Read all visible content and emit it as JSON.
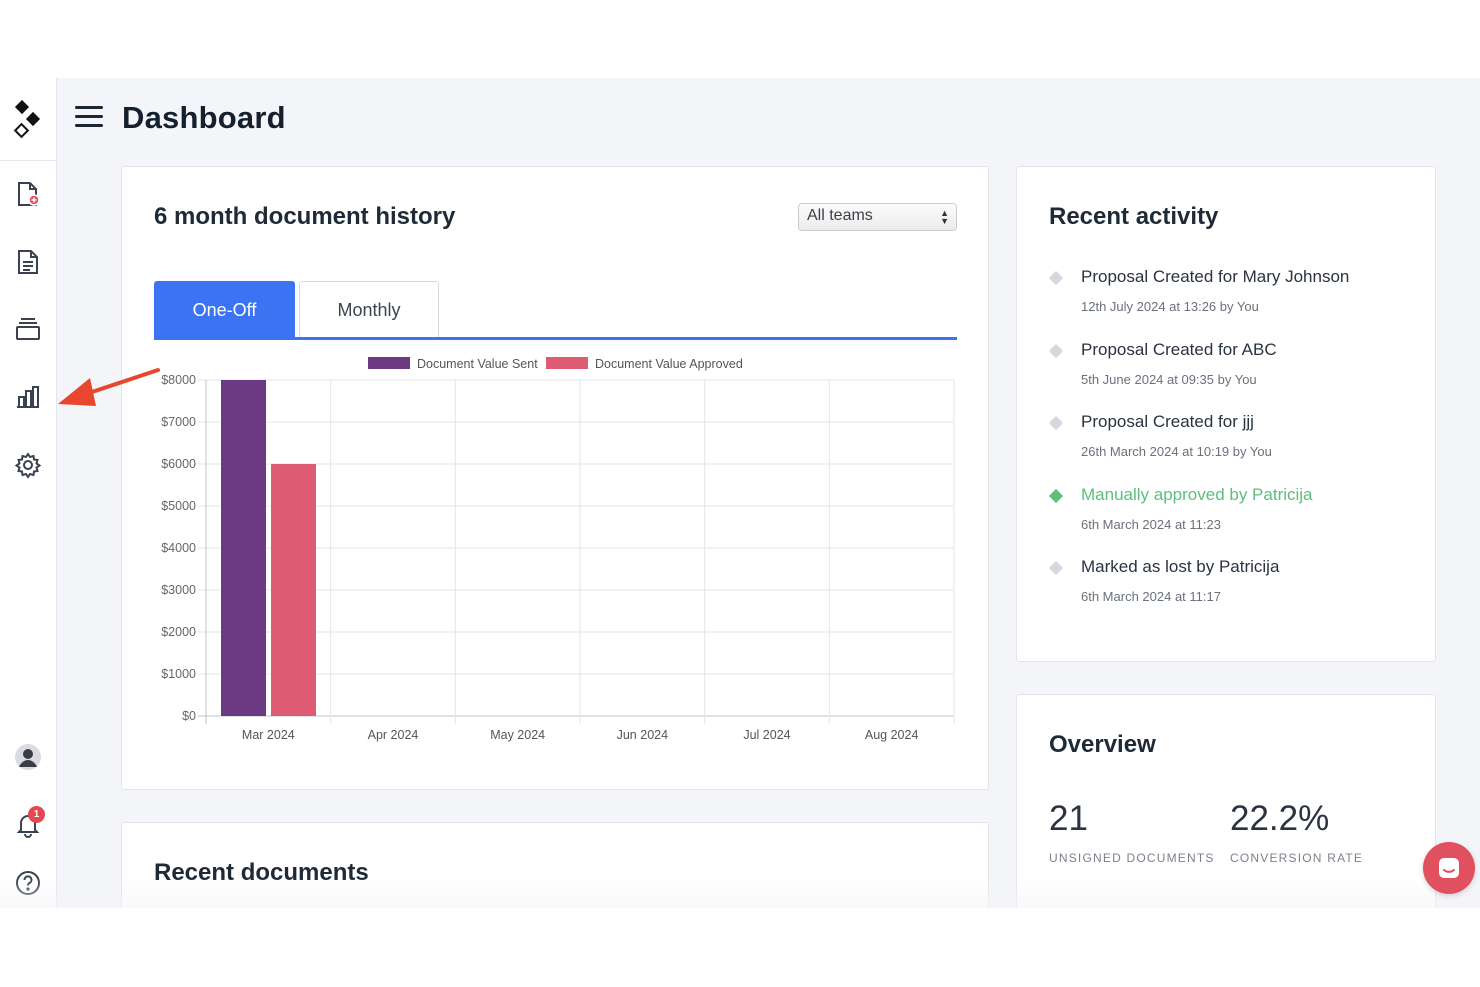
{
  "header": {
    "title": "Dashboard"
  },
  "sidebar": {
    "items": [
      {
        "icon": "new-document-icon"
      },
      {
        "icon": "document-icon"
      },
      {
        "icon": "templates-icon"
      },
      {
        "icon": "reports-bar-chart-icon"
      },
      {
        "icon": "settings-gear-icon"
      }
    ],
    "bottom": [
      {
        "icon": "user-avatar-icon"
      },
      {
        "icon": "bell-icon",
        "badge": "1"
      },
      {
        "icon": "help-icon"
      }
    ]
  },
  "history": {
    "title": "6 month document history",
    "team_select": "All teams",
    "tabs": [
      {
        "label": "One-Off"
      },
      {
        "label": "Monthly"
      }
    ]
  },
  "chart_data": {
    "type": "bar",
    "title": "",
    "categories": [
      "Mar 2024",
      "Apr 2024",
      "May 2024",
      "Jun 2024",
      "Jul 2024",
      "Aug 2024"
    ],
    "series": [
      {
        "name": "Document Value Sent",
        "color": "#6b3a82",
        "values": [
          8000,
          0,
          0,
          0,
          0,
          0
        ]
      },
      {
        "name": "Document Value Approved",
        "color": "#de5c73",
        "values": [
          6000,
          0,
          0,
          0,
          0,
          0
        ]
      }
    ],
    "y_ticks": [
      "$0",
      "$1000",
      "$2000",
      "$3000",
      "$4000",
      "$5000",
      "$6000",
      "$7000",
      "$8000"
    ],
    "ylim": [
      0,
      8000
    ],
    "grid": true,
    "legend": "top"
  },
  "activity": {
    "title": "Recent activity",
    "items": [
      {
        "text": "Proposal Created for Mary Johnson",
        "time": "12th July 2024 at 13:26 by You",
        "color": "#2b3340",
        "dot": "#d5d8df"
      },
      {
        "text": "Proposal Created for ABC",
        "time": "5th June 2024 at 09:35 by You",
        "color": "#2b3340",
        "dot": "#d5d8df"
      },
      {
        "text": "Proposal Created for jjj",
        "time": "26th March 2024 at 10:19 by You",
        "color": "#2b3340",
        "dot": "#d5d8df"
      },
      {
        "text": "Manually approved by Patricija",
        "time": "6th March 2024 at 11:23",
        "color": "#5cbf7a",
        "dot": "#5cbf7a"
      },
      {
        "text": "Marked as lost by Patricija",
        "time": "6th March 2024 at 11:17",
        "color": "#2b3340",
        "dot": "#d5d8df"
      }
    ]
  },
  "overview": {
    "title": "Overview",
    "unsigned_value": "21",
    "unsigned_label": "UNSIGNED DOCUMENTS",
    "conversion_value": "22.2%",
    "conversion_label": "CONVERSION RATE"
  },
  "recent_docs": {
    "title": "Recent documents"
  },
  "colors": {
    "accent": "#3b74f2",
    "annotation_arrow": "#e8462e",
    "chat": "#e0505f"
  }
}
